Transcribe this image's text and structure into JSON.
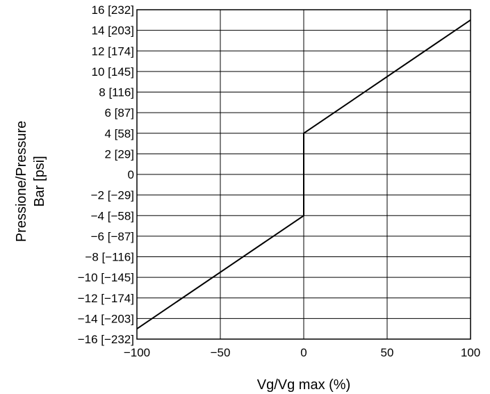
{
  "chart_data": {
    "type": "line",
    "title": "",
    "xlabel": "Vg/Vg max (%)",
    "ylabel_lines": [
      "Pressione/Pressure",
      "Bar [psi]"
    ],
    "xlim": [
      -100,
      100
    ],
    "ylim": [
      -16,
      16
    ],
    "grid": true,
    "x_ticks": [
      {
        "value": -100,
        "label": "−100"
      },
      {
        "value": -50,
        "label": "−50"
      },
      {
        "value": 0,
        "label": "0"
      },
      {
        "value": 50,
        "label": "50"
      },
      {
        "value": 100,
        "label": "100"
      }
    ],
    "y_ticks": [
      {
        "value": 16,
        "label": "16 [232]"
      },
      {
        "value": 14,
        "label": "14 [203]"
      },
      {
        "value": 12,
        "label": "12 [174]"
      },
      {
        "value": 10,
        "label": "10 [145]"
      },
      {
        "value": 8,
        "label": "8 [116]"
      },
      {
        "value": 6,
        "label": "6 [87]"
      },
      {
        "value": 4,
        "label": "4 [58]"
      },
      {
        "value": 2,
        "label": "2 [29]"
      },
      {
        "value": 0,
        "label": "0"
      },
      {
        "value": -2,
        "label": "−2 [−29]"
      },
      {
        "value": -4,
        "label": "−4 [−58]"
      },
      {
        "value": -6,
        "label": "−6 [−87]"
      },
      {
        "value": -8,
        "label": "−8 [−116]"
      },
      {
        "value": -10,
        "label": "−10 [−145]"
      },
      {
        "value": -12,
        "label": "−12 [−174]"
      },
      {
        "value": -14,
        "label": "−14 [−203]"
      },
      {
        "value": -16,
        "label": "−16 [−232]"
      }
    ],
    "series": [
      {
        "x": [
          -100,
          0,
          0,
          100
        ],
        "y": [
          -15,
          -4,
          4,
          15
        ]
      }
    ],
    "line_color": "#000000"
  }
}
